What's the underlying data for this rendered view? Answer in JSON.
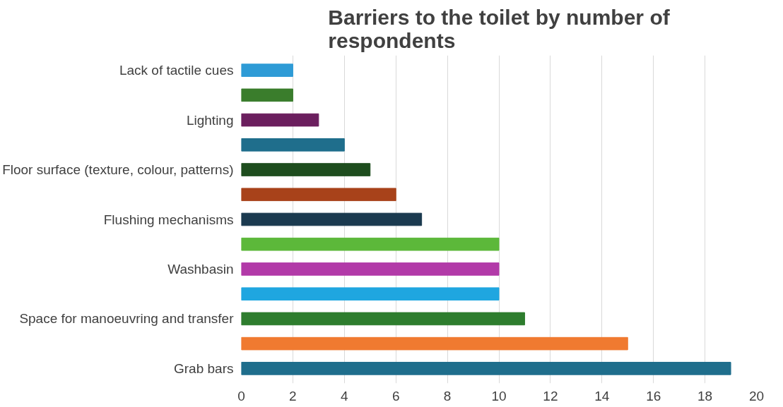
{
  "chart_data": {
    "type": "bar",
    "orientation": "horizontal",
    "title": "Barriers to the toilet by number of respondents",
    "categories": [
      "Lack of tactile cues",
      null,
      "Lighting",
      null,
      "Floor surface (texture, colour, patterns)",
      null,
      "Flushing mechanisms",
      null,
      "Washbasin",
      null,
      "Space for manoeuvring and transfer",
      null,
      "Grab bars"
    ],
    "values": [
      2,
      2,
      3,
      4,
      5,
      6,
      7,
      10,
      10,
      10,
      11,
      15,
      19
    ],
    "colors": [
      "#2e9bd6",
      "#3a7d2c",
      "#6b1f5e",
      "#1f6e8c",
      "#1e4d1e",
      "#a8421a",
      "#1b3a4f",
      "#5cb83a",
      "#b23aa8",
      "#1fa6e0",
      "#2e7d2e",
      "#f07a30",
      "#1f6e8c"
    ],
    "xlim": [
      0,
      20
    ],
    "xticks": [
      0,
      2,
      4,
      6,
      8,
      10,
      12,
      14,
      16,
      18,
      20
    ],
    "grid": "x"
  }
}
